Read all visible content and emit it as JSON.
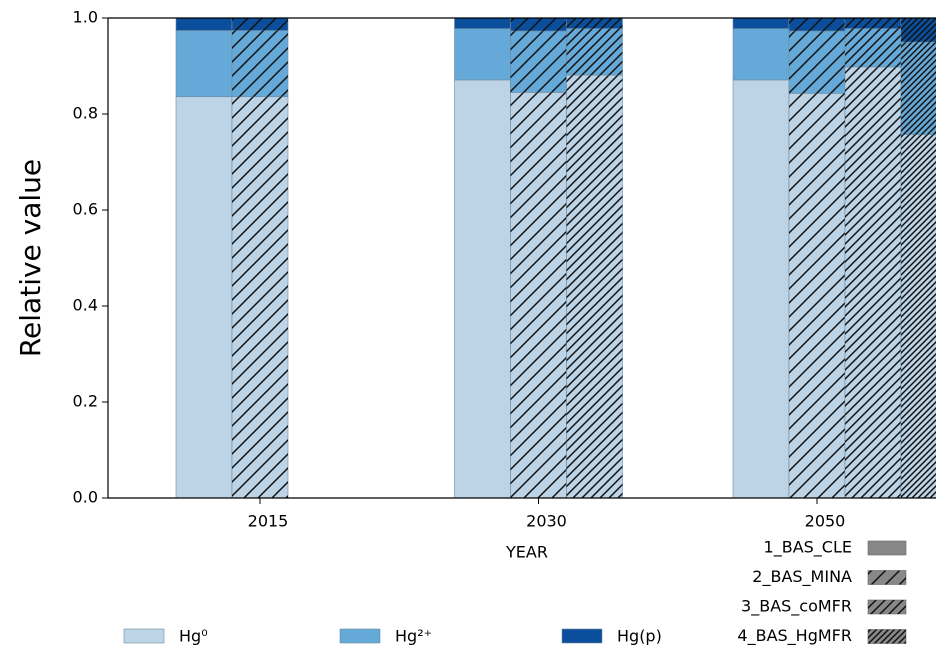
{
  "chart_data": {
    "type": "bar",
    "ylabel": "Relative value",
    "xlabel": "YEAR",
    "categories": [
      "2015",
      "2030",
      "2050"
    ],
    "ylim": [
      0,
      1
    ],
    "yticks": [
      {
        "value": 0,
        "label": "0.0"
      },
      0.2,
      0.4,
      0.6,
      0.8,
      {
        "value": 1,
        "label": "1.0"
      }
    ],
    "species": [
      {
        "name": "Hg⁰",
        "color": "#bcd4e6"
      },
      {
        "name": "Hg²⁺",
        "color": "#64a9d7"
      },
      {
        "name": "Hg(p)",
        "color": "#0b4f9c"
      }
    ],
    "scenarios": [
      {
        "name": "1_BAS_CLE",
        "hatch": 0,
        "values": [
          [
            0.836,
            0.138,
            0.026
          ],
          [
            0.871,
            0.107,
            0.022
          ],
          [
            0.871,
            0.107,
            0.022
          ]
        ]
      },
      {
        "name": "2_BAS_MINA",
        "hatch": 1,
        "values": [
          [
            0.836,
            0.138,
            0.026
          ],
          [
            0.845,
            0.128,
            0.027
          ],
          [
            0.843,
            0.13,
            0.027
          ]
        ]
      },
      {
        "name": "3_BAS_coMFR",
        "hatch": 2,
        "values": [
          null,
          [
            0.881,
            0.097,
            0.022
          ],
          [
            0.898,
            0.08,
            0.022
          ]
        ]
      },
      {
        "name": "4_BAS_HgMFR",
        "hatch": 3,
        "values": [
          null,
          null,
          [
            0.757,
            0.193,
            0.05
          ]
        ]
      }
    ]
  }
}
